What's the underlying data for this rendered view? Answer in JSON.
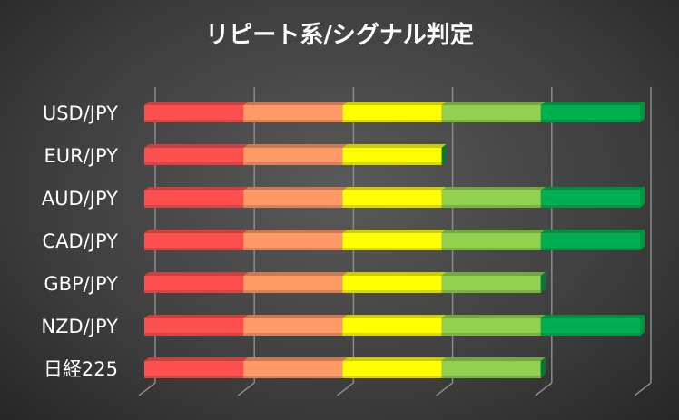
{
  "chart_data": {
    "type": "bar",
    "orientation": "horizontal",
    "stacked": true,
    "three_d": true,
    "title": "リピート系/シグナル判定",
    "categories": [
      "USD/JPY",
      "EUR/JPY",
      "AUD/JPY",
      "CAD/JPY",
      "GBP/JPY",
      "NZD/JPY",
      "日経225"
    ],
    "series": [
      {
        "color": "#FF5050",
        "values": [
          1,
          1,
          1,
          1,
          1,
          1,
          1
        ]
      },
      {
        "color": "#FF9966",
        "values": [
          1,
          1,
          1,
          1,
          1,
          1,
          1
        ]
      },
      {
        "color": "#FFFF00",
        "values": [
          1,
          1,
          1,
          1,
          1,
          1,
          1
        ]
      },
      {
        "color": "#92D050",
        "values": [
          1,
          0,
          1,
          1,
          1,
          1,
          1
        ]
      },
      {
        "color": "#00B050",
        "values": [
          1,
          0,
          1,
          1,
          0,
          1,
          0
        ]
      }
    ],
    "xlim": [
      0,
      5
    ],
    "grid": true,
    "tick_labels_shown": false,
    "legend": "none"
  }
}
